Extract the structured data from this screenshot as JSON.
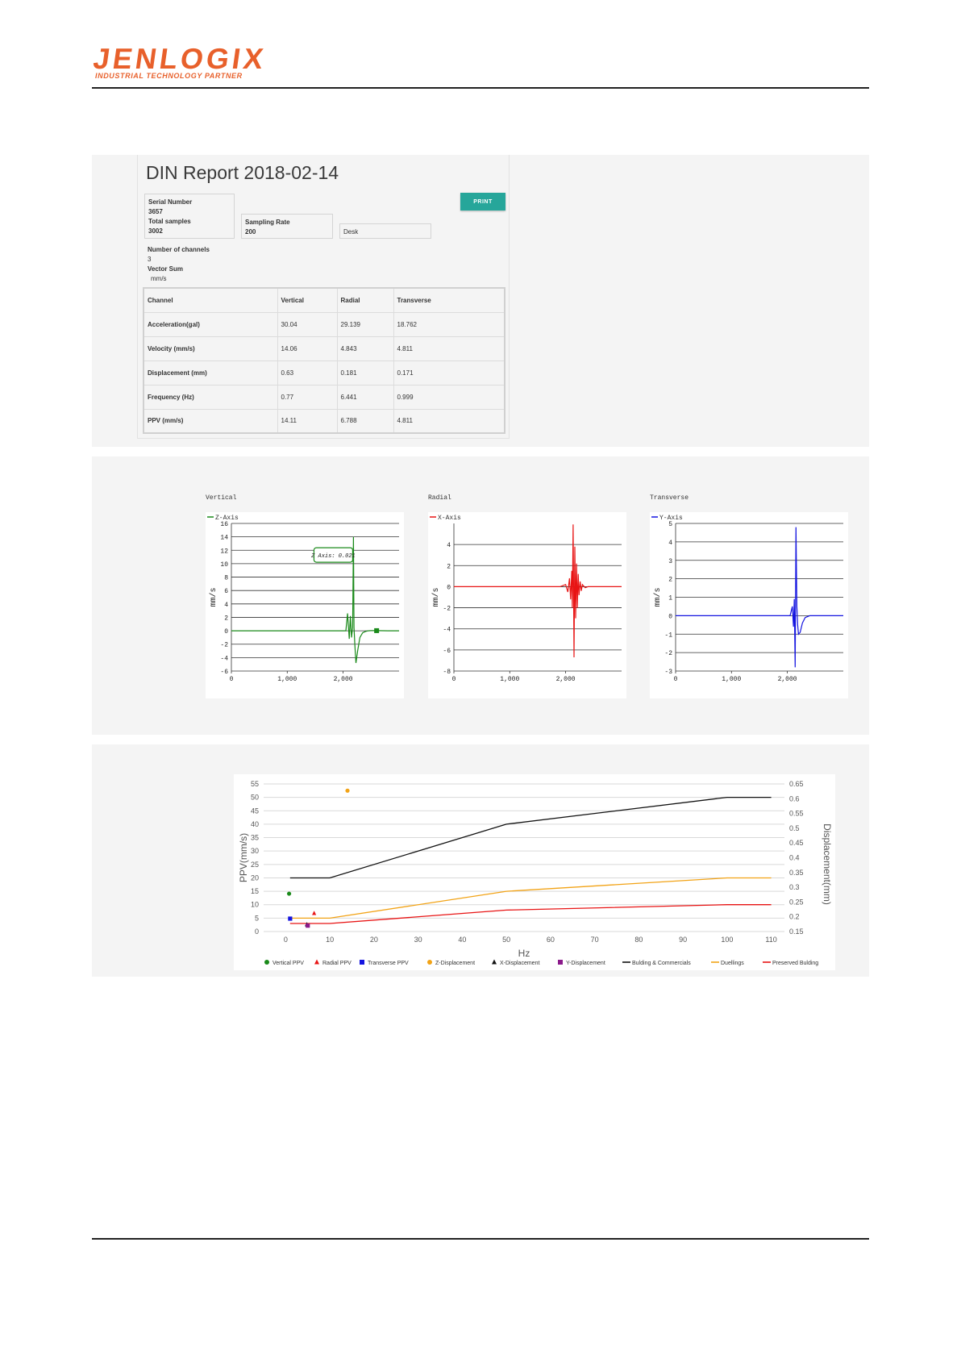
{
  "header": {
    "logo_text": "JENLOGIX",
    "logo_tagline": "INDUSTRIAL TECHNOLOGY PARTNER"
  },
  "report": {
    "title": "DIN Report 2018-02-14",
    "serial_label": "Serial Number",
    "serial_value": "3657",
    "total_samples_label": "Total samples",
    "total_samples_value": "3002",
    "sampling_rate_label": "Sampling Rate",
    "sampling_rate_value": "200",
    "location_value": "Desk",
    "print_label": "PRINT",
    "channels_label": "Number of channels",
    "channels_value": "3",
    "vector_sum_label": "Vector Sum",
    "vector_sum_unit": "mm/s",
    "table": {
      "headers": [
        "Channel",
        "Vertical",
        "Radial",
        "Transverse"
      ],
      "rows": [
        [
          "Acceleration(gal)",
          "30.04",
          "29.139",
          "18.762"
        ],
        [
          "Velocity (mm/s)",
          "14.06",
          "4.843",
          "4.811"
        ],
        [
          "Displacement (mm)",
          "0.63",
          "0.181",
          "0.171"
        ],
        [
          "Frequency (Hz)",
          "0.77",
          "6.441",
          "0.999"
        ],
        [
          "PPV (mm/s)",
          "14.11",
          "6.788",
          "4.811"
        ]
      ]
    }
  },
  "axis_titles": [
    "Vertical",
    "Radial",
    "Transverse"
  ],
  "colors": {
    "z_axis": "#1a8a1a",
    "x_axis": "#e81414",
    "y_axis": "#1414e0",
    "orange": "#f2a316",
    "purple": "#8b1a8b",
    "black": "#111111",
    "print_button": "#26a69a",
    "logo": "#e8602b"
  },
  "chart_data": [
    {
      "type": "line",
      "title": "Vertical",
      "legend": [
        "Z-Axis"
      ],
      "legend_position": "top-left",
      "ylabel": "mm/s",
      "xlim": [
        0,
        3002
      ],
      "ylim": [
        -6,
        16
      ],
      "xticks": [
        "0",
        "1,000",
        "2,000"
      ],
      "yticks": [
        "16",
        "14",
        "12",
        "10",
        "8",
        "6",
        "4",
        "2",
        "0",
        "-2",
        "-4",
        "-6"
      ],
      "tooltip": "Z Axis: 0.021",
      "series": [
        {
          "name": "Z-Axis",
          "color": "#1a8a1a",
          "x": [
            0,
            500,
            1000,
            1500,
            1900,
            2050,
            2080,
            2110,
            2130,
            2150,
            2170,
            2185,
            2195,
            2210,
            2230,
            2260,
            2300,
            2350,
            2400,
            2450,
            2500,
            2600,
            2800,
            3002
          ],
          "y": [
            0,
            0,
            0,
            0,
            0,
            0,
            2.6,
            -1.2,
            2.2,
            -1,
            0.5,
            14,
            0.5,
            -2,
            -4.8,
            -3,
            -1,
            -0.3,
            -0.1,
            0,
            0.02,
            0.02,
            0,
            0
          ]
        }
      ],
      "marker": {
        "x": 2600,
        "y": 0.02
      }
    },
    {
      "type": "line",
      "title": "Radial",
      "legend": [
        "X-Axis"
      ],
      "legend_position": "top-left",
      "ylabel": "mm/s",
      "xlim": [
        0,
        3002
      ],
      "ylim": [
        -8,
        6
      ],
      "xticks": [
        "0",
        "1,000",
        "2,000"
      ],
      "yticks": [
        "4",
        "2",
        "0",
        "-2",
        "-4",
        "-6",
        "-8"
      ],
      "series": [
        {
          "name": "X-Axis",
          "color": "#e81414",
          "x": [
            0,
            500,
            1000,
            1500,
            1900,
            2000,
            2040,
            2070,
            2090,
            2110,
            2120,
            2135,
            2150,
            2165,
            2180,
            2195,
            2210,
            2225,
            2240,
            2260,
            2280,
            2300,
            2350,
            2400,
            2500,
            3002
          ],
          "y": [
            0,
            0,
            0,
            0,
            0,
            0.2,
            -0.5,
            0.8,
            -1.2,
            1.5,
            -2,
            5.9,
            -6.7,
            3.8,
            -3,
            2.2,
            -2,
            1.2,
            -0.8,
            0.5,
            -0.4,
            0.2,
            -0.1,
            0,
            0,
            0
          ]
        }
      ]
    },
    {
      "type": "line",
      "title": "Transverse",
      "legend": [
        "Y-Axis"
      ],
      "legend_position": "top-left",
      "ylabel": "mm/s",
      "xlim": [
        0,
        3002
      ],
      "ylim": [
        -3,
        5
      ],
      "xticks": [
        "0",
        "1,000",
        "2,000"
      ],
      "yticks": [
        "5",
        "4",
        "3",
        "2",
        "1",
        "0",
        "-1",
        "-2",
        "-3"
      ],
      "series": [
        {
          "name": "Y-Axis",
          "color": "#1414e0",
          "x": [
            0,
            500,
            1000,
            1500,
            1900,
            2050,
            2090,
            2110,
            2125,
            2140,
            2155,
            2170,
            2185,
            2200,
            2230,
            2270,
            2320,
            2400,
            2500,
            3002
          ],
          "y": [
            0,
            0,
            0,
            0,
            0,
            0,
            0.5,
            -0.6,
            0.9,
            -2.8,
            4.8,
            0.5,
            -0.5,
            -1,
            -0.9,
            -0.4,
            -0.1,
            0,
            0,
            0
          ]
        }
      ]
    },
    {
      "type": "line",
      "title": "",
      "xlabel": "Hz",
      "ylabel": "PPV(mm/s)",
      "y2label": "Displacement(mm)",
      "xlim": [
        -5,
        113
      ],
      "ylim": [
        0,
        55
      ],
      "y2lim": [
        0.15,
        0.65
      ],
      "xticks": [
        "0",
        "10",
        "20",
        "30",
        "40",
        "50",
        "60",
        "70",
        "80",
        "90",
        "100",
        "110"
      ],
      "yticks": [
        "0",
        "5",
        "10",
        "15",
        "20",
        "25",
        "30",
        "35",
        "40",
        "45",
        "50",
        "55"
      ],
      "y2ticks": [
        "0.15",
        "0.2",
        "0.25",
        "0.3",
        "0.35",
        "0.4",
        "0.45",
        "0.5",
        "0.55",
        "0.6",
        "0.65"
      ],
      "grid": true,
      "legend_position": "bottom",
      "legend": [
        "Vertical PPV",
        "Radial PPV",
        "Transverse PPV",
        "Z-Displacement",
        "X-Displacement",
        "Y-Displacement",
        "Bulding & Commercials",
        "Duellings",
        "Preserved Bulding"
      ],
      "lines": [
        {
          "name": "Bulding & Commercials",
          "color": "#111111",
          "x": [
            1,
            10,
            50,
            100,
            110
          ],
          "y": [
            20,
            20,
            40,
            50,
            50
          ]
        },
        {
          "name": "Duellings",
          "color": "#f2a316",
          "x": [
            1,
            10,
            50,
            100,
            110
          ],
          "y": [
            5,
            5,
            15,
            20,
            20
          ]
        },
        {
          "name": "Preserved Bulding",
          "color": "#e81414",
          "x": [
            1,
            10,
            50,
            100,
            110
          ],
          "y": [
            3,
            3,
            8,
            10,
            10
          ]
        }
      ],
      "points": [
        {
          "name": "Vertical PPV",
          "color": "#1a8a1a",
          "shape": "circle",
          "x": 0.77,
          "y": 14.11
        },
        {
          "name": "Radial PPV",
          "color": "#e81414",
          "shape": "triangle",
          "x": 6.44,
          "y": 6.79
        },
        {
          "name": "Transverse PPV",
          "color": "#1414e0",
          "shape": "square",
          "x": 1.0,
          "y": 4.81
        },
        {
          "name": "Z-Displacement",
          "color": "#f2a316",
          "shape": "circle",
          "x": 14,
          "y": 52.5
        },
        {
          "name": "X-Displacement",
          "color": "#111111",
          "shape": "triangle",
          "x": 4.8,
          "y": 2.6
        },
        {
          "name": "Y-Displacement",
          "color": "#8b1a8b",
          "shape": "square",
          "x": 5,
          "y": 2.2
        }
      ]
    }
  ]
}
